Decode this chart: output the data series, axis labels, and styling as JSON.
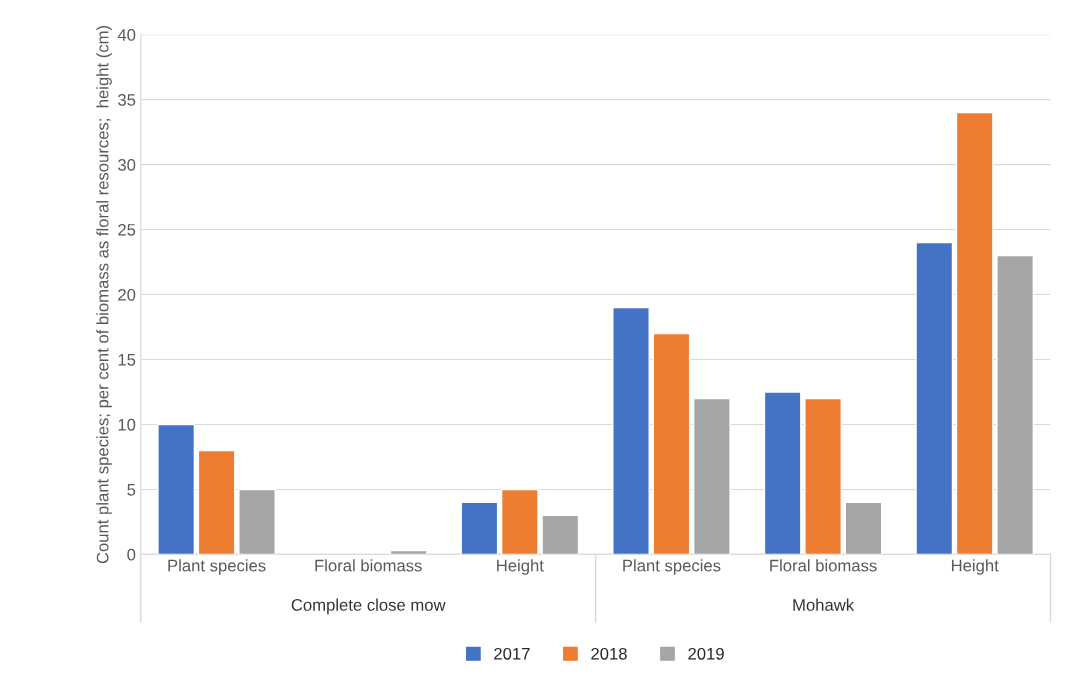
{
  "chart_data": {
    "type": "bar",
    "ylabel": "Count plant species; per cent of biomass as floral resources;  height (cm)",
    "categories": [
      "Plant species",
      "Floral biomass",
      "Height",
      "Plant species",
      "Floral biomass",
      "Height"
    ],
    "annotations": [
      "Complete close mow",
      "Mohawk"
    ],
    "series": [
      {
        "name": "2017",
        "color": "#4472c4",
        "values": [
          10,
          null,
          4,
          19,
          12.5,
          24
        ]
      },
      {
        "name": "2018",
        "color": "#ed7d31",
        "values": [
          8,
          null,
          5,
          17,
          12,
          34
        ]
      },
      {
        "name": "2019",
        "color": "#a5a5a5",
        "values": [
          5,
          0.3,
          3,
          12,
          4,
          23
        ]
      }
    ],
    "ylim": [
      0,
      40
    ],
    "yticks": [
      0,
      5,
      10,
      15,
      20,
      25,
      30,
      35,
      40
    ],
    "grid": "y",
    "legend": "bottom"
  }
}
